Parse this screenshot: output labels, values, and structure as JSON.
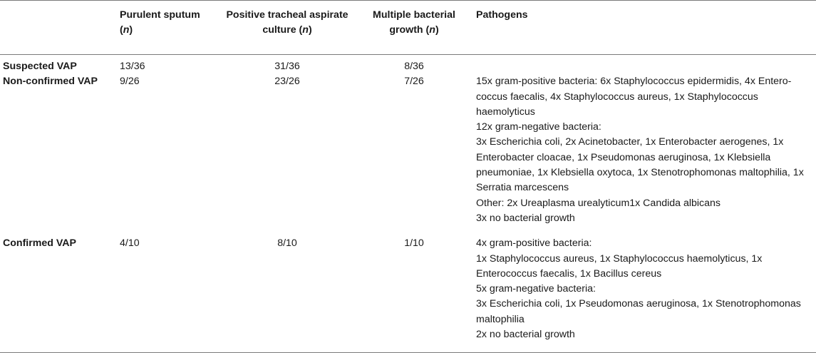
{
  "table": {
    "headers": [
      {
        "text": "",
        "italic": ""
      },
      {
        "text": "Purulent sputum (",
        "italic": "n",
        "after": ")"
      },
      {
        "text": "Positive tracheal aspirate culture (",
        "italic": "n",
        "after": ")"
      },
      {
        "text": "Multiple bacterial growth (",
        "italic": "n",
        "after": ")"
      },
      {
        "text": "Pathogens",
        "italic": "",
        "after": ""
      }
    ],
    "rows": [
      {
        "label": "Suspected VAP",
        "purulent": "13/36",
        "positive": "31/36",
        "multiple": "8/36",
        "pathogens": []
      },
      {
        "label": "Non-confirmed VAP",
        "purulent": "9/26",
        "positive": "23/26",
        "multiple": "7/26",
        "pathogens": [
          "15x gram-positive bacteria: 6x Staphylococcus epidermidis, 4x Entero-coccus faecalis, 4x Staphylococcus aureus, 1x Staphylococcus haemolyticus",
          "12x gram-negative bacteria:",
          "3x Escherichia coli, 2x Acinetobacter, 1x Enterobacter aerogenes, 1x Enterobacter cloacae, 1x Pseudomonas aeruginosa, 1x Klebsiella pneumoniae, 1x Klebsiella oxytoca, 1x Stenotrophomonas maltophilia, 1x Serratia marcescens",
          "Other: 2x Ureaplasma urealyticum1x Candida albicans",
          "3x no bacterial growth"
        ]
      },
      {
        "label": "Confirmed VAP",
        "purulent": "4/10",
        "positive": "8/10",
        "multiple": "1/10",
        "pathogens": [
          "4x gram-positive bacteria:",
          "1x Staphylococcus aureus, 1x Staphylococcus haemolyticus, 1x Enterococcus faecalis, 1x Bacillus cereus",
          "5x gram-negative bacteria:",
          "3x Escherichia coli, 1x Pseudomonas aeruginosa, 1x Stenotrophomonas maltophilia",
          "2x no bacterial growth"
        ]
      }
    ]
  }
}
